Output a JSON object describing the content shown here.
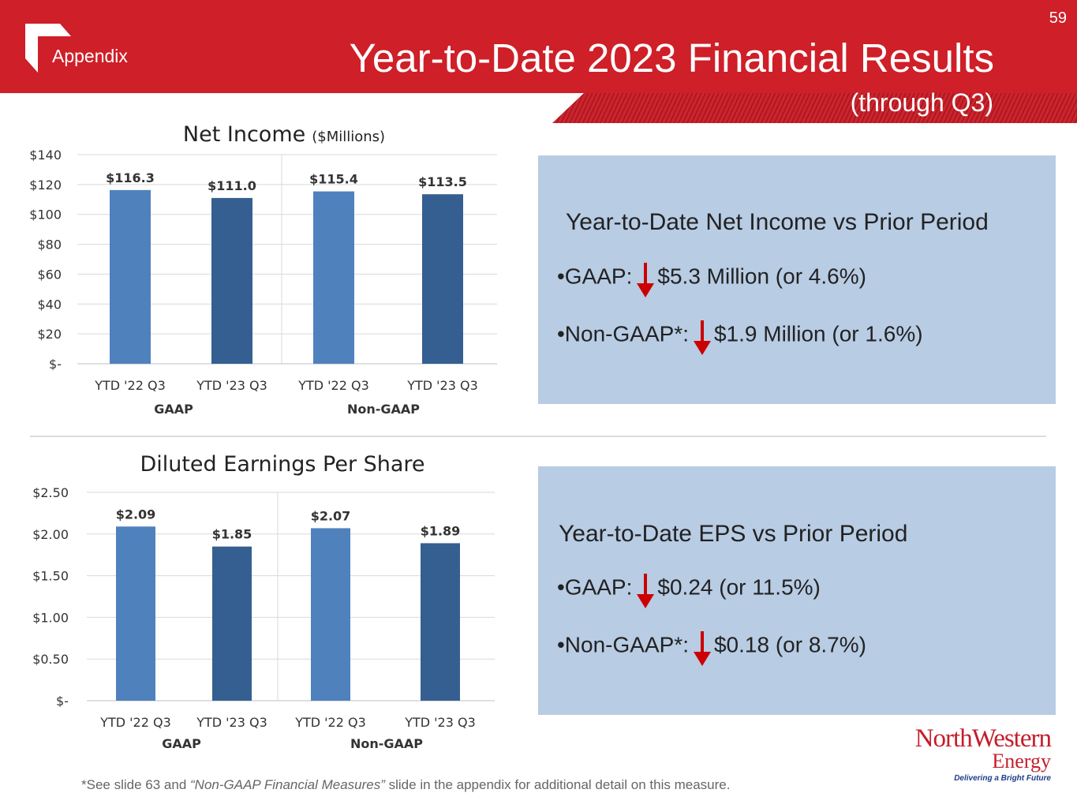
{
  "header": {
    "slide_number": "59",
    "section_label": "Appendix",
    "title": "Year-to-Date 2023 Financial Results",
    "subtitle": "(through Q3)"
  },
  "chart_data": [
    {
      "type": "bar",
      "title": "Net Income",
      "title_unit": "($Millions)",
      "categories": [
        "YTD '22 Q3",
        "YTD '23 Q3",
        "YTD '22 Q3",
        "YTD '23 Q3"
      ],
      "groups": [
        "GAAP",
        "Non-GAAP"
      ],
      "values": [
        116.3,
        111.0,
        115.4,
        113.5
      ],
      "data_labels": [
        "$116.3",
        "$111.0",
        "$115.4",
        "$113.5"
      ],
      "yticks": [
        "$-",
        "$20",
        "$40",
        "$60",
        "$80",
        "$100",
        "$120",
        "$140"
      ],
      "ylim": [
        0,
        140
      ],
      "bar_colors": [
        "#4f81bd",
        "#355f91",
        "#4f81bd",
        "#355f91"
      ],
      "grid": true
    },
    {
      "type": "bar",
      "title": "Diluted Earnings Per Share",
      "categories": [
        "YTD '22 Q3",
        "YTD '23 Q3",
        "YTD '22 Q3",
        "YTD '23 Q3"
      ],
      "groups": [
        "GAAP",
        "Non-GAAP"
      ],
      "values": [
        2.09,
        1.85,
        2.07,
        1.89
      ],
      "data_labels": [
        "$2.09",
        "$1.85",
        "$2.07",
        "$1.89"
      ],
      "yticks": [
        "$-",
        "$0.50",
        "$1.00",
        "$1.50",
        "$2.00",
        "$2.50"
      ],
      "ylim": [
        0,
        2.5
      ],
      "bar_colors": [
        "#4f81bd",
        "#355f91",
        "#4f81bd",
        "#355f91"
      ],
      "grid": true
    }
  ],
  "net_income_box": {
    "title": "Year-to-Date Net Income vs Prior Period",
    "gaap_label": "•GAAP:",
    "gaap_value": "$5.3 Million (or 4.6%)",
    "nongaap_label": "•Non-GAAP*:",
    "nongaap_value": "$1.9 Million (or 1.6%)",
    "arrow_icon": "down-arrow-icon",
    "arrow_color": "#cc0000"
  },
  "eps_box": {
    "title": "Year-to-Date EPS vs Prior Period",
    "gaap_label": "•GAAP:",
    "gaap_value": "$0.24 (or 11.5%)",
    "nongaap_label": "•Non-GAAP*:",
    "nongaap_value": "$0.18 (or 8.7%)"
  },
  "footnote": {
    "prefix": "*See slide 63 and ",
    "emphasis": "“Non-GAAP Financial Measures”",
    "suffix": " slide in the appendix for additional detail on this measure."
  },
  "logo": {
    "line1": "NorthWestern",
    "line2": "Energy",
    "tagline": "Delivering a Bright Future"
  },
  "colors": {
    "header_red": "#cf1f28",
    "box_blue": "#b8cce4"
  }
}
